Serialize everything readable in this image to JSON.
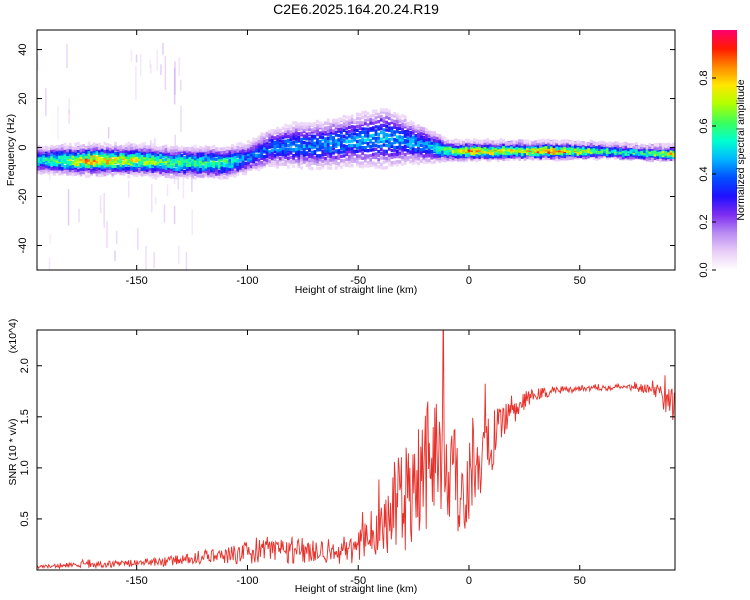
{
  "title": "C2E6.2025.164.20.24.R19",
  "colors": {
    "snr_line": "#e8302a",
    "colormap": [
      "#ffffff",
      "#e9cdf7",
      "#b98cf2",
      "#7c2cf0",
      "#1f10ff",
      "#0050ff",
      "#00b7ff",
      "#00ffd0",
      "#3cff5a",
      "#b0ff00",
      "#ffe800",
      "#ff8a00",
      "#ff1a00",
      "#ff0070"
    ]
  },
  "chart_data": [
    {
      "type": "heatmap",
      "title": "C2E6.2025.164.20.24.R19",
      "xlabel": "Height of straight line (km)",
      "ylabel": "Frequency (Hz)",
      "xlim": [
        -195,
        93
      ],
      "ylim": [
        -50,
        48
      ],
      "xticks": [
        -150,
        -100,
        -50,
        0,
        50
      ],
      "yticks": [
        -40,
        -20,
        0,
        20,
        40
      ],
      "colorbar": {
        "label": "Normalized spectral amplitude",
        "range": [
          0.0,
          1.0
        ],
        "ticks": [
          0.0,
          0.2,
          0.4,
          0.6,
          0.8
        ]
      },
      "ridge_frequency": {
        "x": [
          -195,
          -170,
          -150,
          -130,
          -110,
          -100,
          -90,
          -80,
          -70,
          -60,
          -50,
          -40,
          -30,
          -20,
          -15,
          -10,
          0,
          20,
          40,
          60,
          80,
          93
        ],
        "y": [
          -5,
          -5,
          -5,
          -6,
          -6,
          -4,
          0,
          1,
          1,
          2,
          3,
          4,
          3,
          1,
          0,
          -1,
          -1,
          -1,
          -1,
          -1,
          -2,
          -2
        ]
      },
      "ridge_spread_hz": {
        "x": [
          -195,
          -100,
          -80,
          -50,
          -40,
          -20,
          -10,
          93
        ],
        "y": [
          3,
          3.5,
          5,
          6,
          7,
          4,
          2,
          1.5
        ]
      },
      "peak_amplitude": {
        "x": [
          -195,
          -170,
          -160,
          -130,
          -110,
          -100,
          -50,
          -20,
          -10,
          0,
          20,
          40,
          60,
          80,
          93
        ],
        "y": [
          0.5,
          0.85,
          0.75,
          0.6,
          0.6,
          0.4,
          0.45,
          0.45,
          0.7,
          0.85,
          0.75,
          0.9,
          0.6,
          0.6,
          0.9
        ]
      }
    },
    {
      "type": "line",
      "xlabel": "Height of straight line (km)",
      "ylabel": "SNR (10 * v/v)",
      "y_multiplier": "(x10^4)",
      "xlim": [
        -195,
        93
      ],
      "ylim": [
        0,
        2.35
      ],
      "xticks": [
        -150,
        -100,
        -50,
        0,
        50
      ],
      "yticks": [
        0.5,
        1.0,
        1.5,
        2.0
      ],
      "series": [
        {
          "x": [
            -195,
            -175,
            -160,
            -150,
            -140,
            -130,
            -120,
            -110,
            -100,
            -90,
            -80,
            -70,
            -60,
            -50,
            -45,
            -40,
            -35,
            -30,
            -25,
            -20,
            -15,
            -12,
            -10,
            -5,
            0,
            5,
            10,
            15,
            20,
            25,
            30,
            40,
            50,
            60,
            70,
            80,
            85,
            93
          ],
          "values": [
            0.03,
            0.05,
            0.06,
            0.07,
            0.08,
            0.1,
            0.12,
            0.14,
            0.17,
            0.19,
            0.2,
            0.2,
            0.18,
            0.22,
            0.3,
            0.4,
            0.55,
            0.7,
            0.9,
            1.05,
            1.2,
            1.35,
            0.95,
            0.8,
            0.9,
            1.1,
            1.25,
            1.4,
            1.55,
            1.65,
            1.72,
            1.76,
            1.78,
            1.79,
            1.79,
            1.78,
            1.75,
            1.62
          ],
          "noise": [
            0.01,
            0.02,
            0.02,
            0.02,
            0.03,
            0.03,
            0.04,
            0.05,
            0.07,
            0.08,
            0.09,
            0.09,
            0.08,
            0.1,
            0.15,
            0.2,
            0.28,
            0.35,
            0.4,
            0.42,
            0.45,
            0.5,
            0.45,
            0.35,
            0.3,
            0.25,
            0.2,
            0.12,
            0.08,
            0.06,
            0.04,
            0.03,
            0.02,
            0.02,
            0.02,
            0.03,
            0.08,
            0.12
          ]
        }
      ]
    }
  ]
}
